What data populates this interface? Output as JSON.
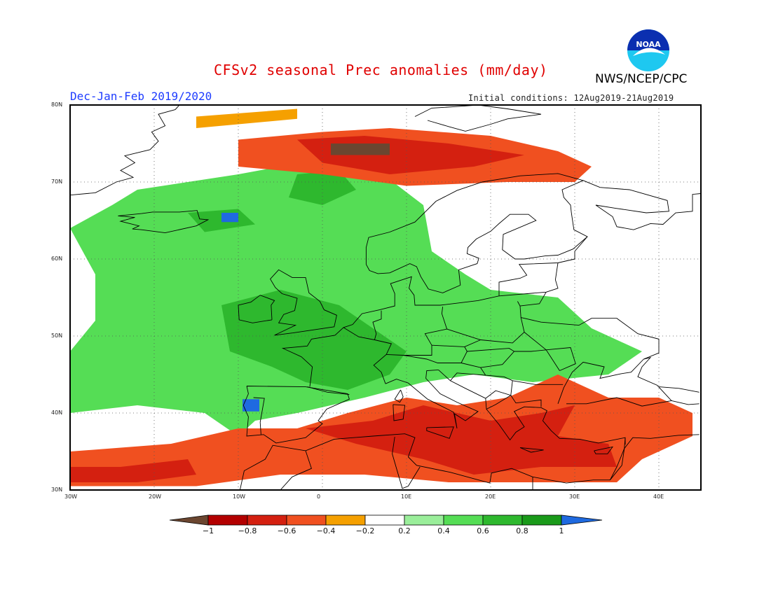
{
  "title": "CFSv2 seasonal Prec anomalies (mm/day)",
  "agency": "NWS/NCEP/CPC",
  "logo_text": "NOAA",
  "period": "Dec-Jan-Feb 2019/2020",
  "initial_conditions": "Initial conditions: 12Aug2019-21Aug2019",
  "map": {
    "lon_range": [
      -30,
      45
    ],
    "lat_range": [
      30,
      80
    ],
    "lat_ticks": [
      {
        "value": 80,
        "label": "80N"
      },
      {
        "value": 70,
        "label": "70N"
      },
      {
        "value": 60,
        "label": "60N"
      },
      {
        "value": 50,
        "label": "50N"
      },
      {
        "value": 40,
        "label": "40N"
      },
      {
        "value": 30,
        "label": "30N"
      }
    ],
    "lon_ticks": [
      {
        "value": -30,
        "label": "30W"
      },
      {
        "value": -20,
        "label": "20W"
      },
      {
        "value": -10,
        "label": "10W"
      },
      {
        "value": 0,
        "label": "0"
      },
      {
        "value": 10,
        "label": "10E"
      },
      {
        "value": 20,
        "label": "20E"
      },
      {
        "value": 30,
        "label": "30E"
      },
      {
        "value": 40,
        "label": "40E"
      }
    ],
    "grid": "dotted"
  },
  "colorbar": {
    "levels": [
      "-1",
      "-0.8",
      "-0.6",
      "-0.4",
      "-0.2",
      "0.2",
      "0.4",
      "0.6",
      "0.8",
      "1"
    ],
    "colors": [
      "#6b4630",
      "#b30000",
      "#d42010",
      "#f05020",
      "#f5a000",
      "#ffffff",
      "#9aee9a",
      "#55dd55",
      "#2eb82e",
      "#1a9a1a",
      "#1f6ae0"
    ]
  },
  "anomaly_regions": [
    {
      "name": "north-atlantic-wet",
      "value": 0.5,
      "lonlat": [
        [
          -22,
          69
        ],
        [
          -10,
          71
        ],
        [
          0,
          73
        ],
        [
          6,
          72
        ],
        [
          12,
          67
        ],
        [
          13,
          61
        ],
        [
          17,
          58
        ],
        [
          20,
          56
        ],
        [
          28,
          55
        ],
        [
          32,
          51
        ],
        [
          38,
          48
        ],
        [
          34,
          45
        ],
        [
          25,
          44
        ],
        [
          18,
          45
        ],
        [
          12,
          44
        ],
        [
          5,
          42
        ],
        [
          -3,
          40
        ],
        [
          -8,
          39
        ],
        [
          -10,
          37
        ],
        [
          -14,
          40
        ],
        [
          -22,
          41
        ],
        [
          -30,
          40
        ],
        [
          -30,
          48
        ],
        [
          -27,
          52
        ],
        [
          -27,
          58
        ],
        [
          -30,
          64
        ],
        [
          -25,
          67
        ]
      ]
    },
    {
      "name": "norway-sea-wet-core",
      "value": 0.7,
      "lonlat": [
        [
          -3,
          71
        ],
        [
          2,
          71.5
        ],
        [
          4,
          69
        ],
        [
          0,
          67
        ],
        [
          -4,
          68
        ]
      ]
    },
    {
      "name": "iceland-wet-core",
      "value": 0.7,
      "lonlat": [
        [
          -16,
          66
        ],
        [
          -10,
          66.5
        ],
        [
          -8,
          64.5
        ],
        [
          -14,
          63.5
        ]
      ]
    },
    {
      "name": "iceland-very-wet",
      "value": 1.05,
      "lonlat": [
        [
          -12,
          66
        ],
        [
          -10,
          66
        ],
        [
          -10,
          64.8
        ],
        [
          -12,
          64.8
        ]
      ]
    },
    {
      "name": "uk-france-wet-core",
      "value": 0.7,
      "lonlat": [
        [
          -12,
          54
        ],
        [
          -5,
          56
        ],
        [
          2,
          54
        ],
        [
          6,
          51
        ],
        [
          10,
          48
        ],
        [
          8,
          45
        ],
        [
          3,
          43
        ],
        [
          -2,
          44
        ],
        [
          -6,
          46
        ],
        [
          -11,
          48
        ]
      ]
    },
    {
      "name": "iberia-very-wet",
      "value": 1.05,
      "lonlat": [
        [
          -9.5,
          41.8
        ],
        [
          -7.5,
          41.8
        ],
        [
          -7.5,
          40.2
        ],
        [
          -9.5,
          40.2
        ]
      ]
    },
    {
      "name": "barents-dry",
      "value": -0.4,
      "lonlat": [
        [
          -10,
          75.5
        ],
        [
          0,
          76.5
        ],
        [
          8,
          77
        ],
        [
          20,
          76
        ],
        [
          28,
          74
        ],
        [
          32,
          72
        ],
        [
          30,
          70
        ],
        [
          22,
          70
        ],
        [
          10,
          69.5
        ],
        [
          0,
          71
        ],
        [
          -10,
          72
        ]
      ]
    },
    {
      "name": "barents-dry-core",
      "value": -0.75,
      "lonlat": [
        [
          -3,
          75.5
        ],
        [
          5,
          76
        ],
        [
          15,
          75
        ],
        [
          24,
          73.5
        ],
        [
          18,
          72
        ],
        [
          8,
          71
        ],
        [
          0,
          72.5
        ]
      ]
    },
    {
      "name": "barents-very-dry",
      "value": -1.05,
      "lonlat": [
        [
          1,
          75
        ],
        [
          8,
          75
        ],
        [
          8,
          73.5
        ],
        [
          1,
          73.5
        ]
      ]
    },
    {
      "name": "greenland-sea-dry",
      "value": -0.3,
      "lonlat": [
        [
          -15,
          78.5
        ],
        [
          -3,
          79.5
        ],
        [
          -3,
          78.2
        ],
        [
          -15,
          77
        ]
      ]
    },
    {
      "name": "mediterranean-dry",
      "value": -0.4,
      "lonlat": [
        [
          -30,
          35
        ],
        [
          -18,
          36
        ],
        [
          -10,
          38
        ],
        [
          -3,
          38
        ],
        [
          3,
          40
        ],
        [
          10,
          42
        ],
        [
          16,
          41
        ],
        [
          22,
          42
        ],
        [
          28,
          45
        ],
        [
          34,
          42
        ],
        [
          40,
          42
        ],
        [
          44,
          40
        ],
        [
          44,
          37
        ],
        [
          38,
          34
        ],
        [
          35,
          31
        ],
        [
          25,
          31
        ],
        [
          15,
          31
        ],
        [
          5,
          32
        ],
        [
          -5,
          32
        ],
        [
          -15,
          30.5
        ],
        [
          -30,
          30.5
        ]
      ]
    },
    {
      "name": "mediterranean-dry-core",
      "value": -0.7,
      "lonlat": [
        [
          -2,
          38
        ],
        [
          6,
          39
        ],
        [
          12,
          41
        ],
        [
          16,
          40
        ],
        [
          20,
          39
        ],
        [
          26,
          40
        ],
        [
          30,
          41
        ],
        [
          28,
          37
        ],
        [
          34,
          36
        ],
        [
          35,
          33
        ],
        [
          26,
          33
        ],
        [
          18,
          32
        ],
        [
          12,
          34
        ],
        [
          4,
          36
        ]
      ]
    },
    {
      "name": "azores-dry-core",
      "value": -0.7,
      "lonlat": [
        [
          -30,
          33
        ],
        [
          -24,
          33
        ],
        [
          -16,
          34
        ],
        [
          -15,
          32
        ],
        [
          -22,
          31
        ],
        [
          -30,
          31
        ]
      ]
    }
  ]
}
